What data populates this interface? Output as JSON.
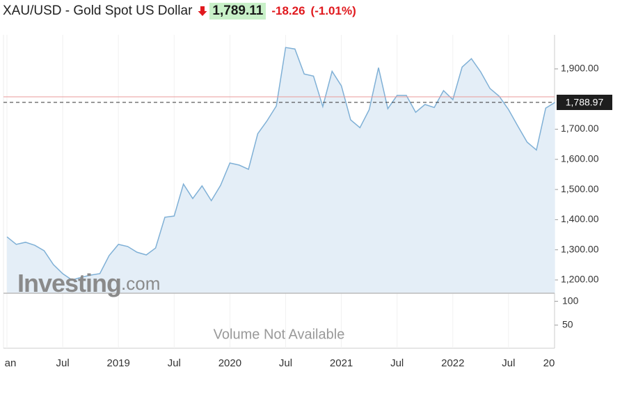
{
  "header": {
    "title": "XAU/USD - Gold Spot US Dollar",
    "price": "1,789.11",
    "change": "-18.26",
    "change_percent": "(-1.01%)"
  },
  "chart_data": {
    "type": "area",
    "color": "#7fb0d6",
    "fill": "#e4eef7",
    "values": [
      1343,
      1318,
      1325,
      1315,
      1297,
      1251,
      1221,
      1200,
      1209,
      1216,
      1221,
      1281,
      1318,
      1311,
      1292,
      1283,
      1306,
      1408,
      1412,
      1518,
      1470,
      1512,
      1463,
      1514,
      1588,
      1581,
      1567,
      1685,
      1728,
      1777,
      1971,
      1966,
      1883,
      1876,
      1775,
      1892,
      1844,
      1731,
      1705,
      1765,
      1904,
      1768,
      1812,
      1812,
      1756,
      1782,
      1772,
      1828,
      1798,
      1906,
      1934,
      1890,
      1835,
      1809,
      1765,
      1710,
      1657,
      1631,
      1770,
      1789
    ],
    "xlim": [
      -0.4,
      59
    ],
    "xticks": [
      {
        "value": 0,
        "label": "an"
      },
      {
        "value": 6,
        "label": "Jul"
      },
      {
        "value": 12,
        "label": "2019"
      },
      {
        "value": 18,
        "label": "Jul"
      },
      {
        "value": 24,
        "label": "2020"
      },
      {
        "value": 30,
        "label": "Jul"
      },
      {
        "value": 36,
        "label": "2021"
      },
      {
        "value": 42,
        "label": "Jul"
      },
      {
        "value": 48,
        "label": "2022"
      },
      {
        "value": 54,
        "label": "Jul"
      },
      {
        "value": 60,
        "label": "20"
      }
    ],
    "ylim": [
      1156,
      2013
    ],
    "yticks": [
      {
        "value": 1900,
        "label": "1,900.00"
      },
      {
        "value": 1700,
        "label": "1,700.00"
      },
      {
        "value": 1600,
        "label": "1,600.00"
      },
      {
        "value": 1500,
        "label": "1,500.00"
      },
      {
        "value": 1400,
        "label": "1,400.00"
      },
      {
        "value": 1300,
        "label": "1,300.00"
      },
      {
        "value": 1200,
        "label": "1,200.00"
      }
    ],
    "last_value": {
      "value": 1788.97,
      "label": "1,788.97"
    },
    "reference_line": 1807.37,
    "watermark": [
      "Investing",
      ".com"
    ],
    "volume": {
      "ylim": [
        0,
        117
      ],
      "yticks": [
        100,
        50
      ],
      "note": "Volume Not Available"
    }
  }
}
